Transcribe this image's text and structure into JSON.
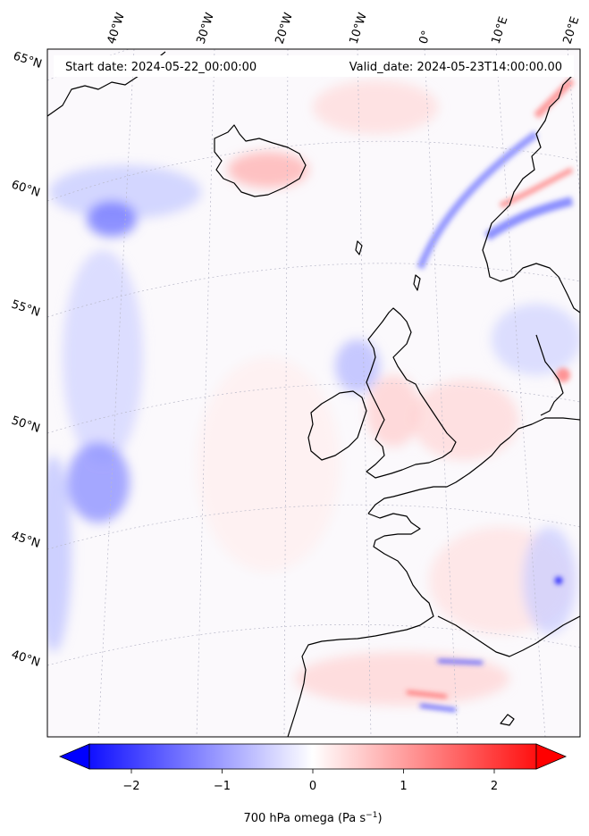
{
  "header": {
    "start_date": "Start date: 2024-05-22_00:00:00",
    "valid_date": "Valid_date: 2024-05-23T14:00:00.00"
  },
  "map": {
    "region": "North Atlantic and Western Europe",
    "longitude_labels": [
      "40°W",
      "30°W",
      "20°W",
      "10°W",
      "0°",
      "10°E",
      "20°E"
    ],
    "latitude_labels": [
      "65°N",
      "60°N",
      "55°N",
      "50°N",
      "45°N",
      "40°N"
    ],
    "gridlines": true,
    "colormap": "bwr"
  },
  "colorbar": {
    "label_main": "700 hPa omega (Pa s",
    "label_exp": "−1",
    "label_close": ")",
    "ticks": [
      "−2",
      "−1",
      "0",
      "1",
      "2"
    ],
    "vmin": -2.6,
    "vmax": 2.6,
    "extend": "both",
    "colors": {
      "low": "#0000ff",
      "mid": "#ffffff",
      "high": "#ff0000"
    }
  }
}
